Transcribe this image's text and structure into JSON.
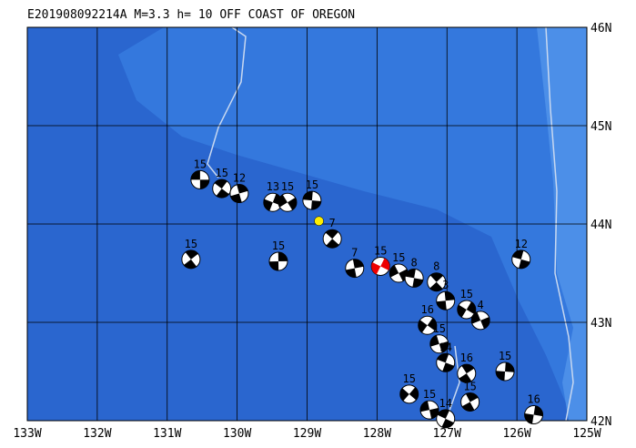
{
  "map": {
    "title": "E201908092214A M=3.3 h= 10 OFF COAST OF OREGON",
    "lonlim": [
      -133,
      -125
    ],
    "latlim": [
      42,
      46
    ],
    "lonticks": [
      {
        "value": -133,
        "label": "133W"
      },
      {
        "value": -132,
        "label": "132W"
      },
      {
        "value": -131,
        "label": "131W"
      },
      {
        "value": -130,
        "label": "130W"
      },
      {
        "value": -129,
        "label": "129W"
      },
      {
        "value": -128,
        "label": "128W"
      },
      {
        "value": -127,
        "label": "127W"
      },
      {
        "value": -126,
        "label": "126W"
      },
      {
        "value": -125,
        "label": "125W"
      }
    ],
    "latticks": [
      {
        "value": 42,
        "label": "42N"
      },
      {
        "value": 43,
        "label": "43N"
      },
      {
        "value": 44,
        "label": "44N"
      },
      {
        "value": 45,
        "label": "45N"
      },
      {
        "value": 46,
        "label": "46N"
      }
    ],
    "epicenter": {
      "lon": -128.83,
      "lat": 44.03,
      "color": "#ffee00"
    },
    "events": [
      {
        "lon": -130.53,
        "lat": 44.45,
        "label": "15"
      },
      {
        "lon": -130.22,
        "lat": 44.36,
        "label": "15"
      },
      {
        "lon": -129.97,
        "lat": 44.31,
        "label": "12"
      },
      {
        "lon": -129.49,
        "lat": 44.22,
        "label": "13"
      },
      {
        "lon": -129.28,
        "lat": 44.22,
        "label": "15"
      },
      {
        "lon": -128.93,
        "lat": 44.24,
        "label": "15"
      },
      {
        "lon": -128.64,
        "lat": 43.85,
        "label": "7"
      },
      {
        "lon": -128.32,
        "lat": 43.55,
        "label": "7"
      },
      {
        "lon": -127.95,
        "lat": 43.57,
        "label": "15",
        "color": "#ee0000"
      },
      {
        "lon": -127.69,
        "lat": 43.5,
        "label": "15"
      },
      {
        "lon": -127.47,
        "lat": 43.45,
        "label": "8"
      },
      {
        "lon": -127.15,
        "lat": 43.41,
        "label": "8"
      },
      {
        "lon": -127.02,
        "lat": 43.22,
        "label": "3"
      },
      {
        "lon": -126.72,
        "lat": 43.13,
        "label": "15"
      },
      {
        "lon": -126.52,
        "lat": 43.02,
        "label": "4"
      },
      {
        "lon": -125.94,
        "lat": 43.64,
        "label": "12"
      },
      {
        "lon": -130.66,
        "lat": 43.64,
        "label": "15"
      },
      {
        "lon": -129.41,
        "lat": 43.62,
        "label": "15"
      },
      {
        "lon": -127.28,
        "lat": 42.97,
        "label": "16"
      },
      {
        "lon": -127.11,
        "lat": 42.78,
        "label": "15"
      },
      {
        "lon": -127.02,
        "lat": 42.59,
        "label": "14"
      },
      {
        "lon": -126.72,
        "lat": 42.48,
        "label": "16"
      },
      {
        "lon": -126.17,
        "lat": 42.5,
        "label": "15"
      },
      {
        "lon": -127.54,
        "lat": 42.27,
        "label": "15"
      },
      {
        "lon": -127.25,
        "lat": 42.11,
        "label": "15"
      },
      {
        "lon": -127.02,
        "lat": 42.02,
        "label": "14"
      },
      {
        "lon": -126.67,
        "lat": 42.19,
        "label": "15"
      },
      {
        "lon": -125.76,
        "lat": 42.06,
        "label": "16"
      }
    ]
  }
}
